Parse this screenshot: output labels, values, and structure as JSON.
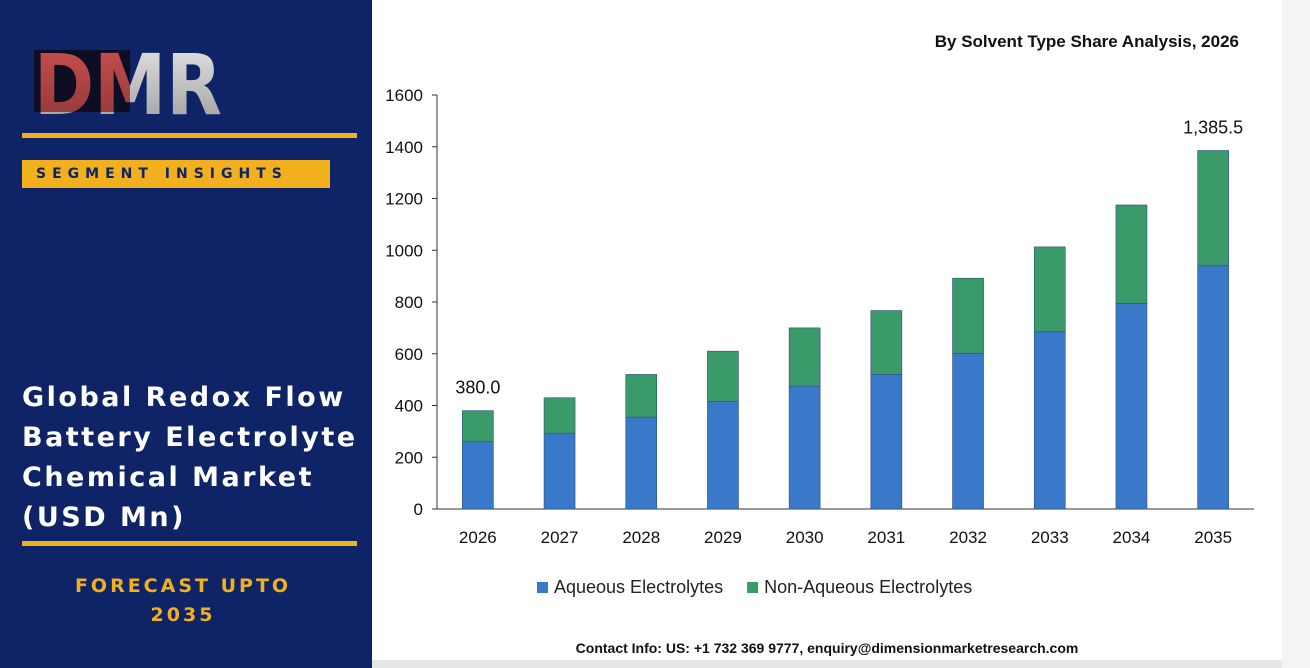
{
  "brand": {
    "logo_text": "DMR"
  },
  "sidebar": {
    "segment_label": "SEGMENT INSIGHTS",
    "title_lines": [
      "Global Redox Flow",
      "Battery Electrolyte",
      "Chemical Market",
      "(USD Mn)"
    ],
    "forecast_lines": [
      "FORECAST UPTO",
      "2035"
    ]
  },
  "contact": "Contact Info: US: +1 732 369 9777, enquiry@dimensionmarketresearch.com",
  "colors": {
    "aqueous": "#3a78c9",
    "non_aqueous": "#3a9a6a",
    "sidebar_bg": "#0e2466",
    "accent": "#f2b01e"
  },
  "chart_data": {
    "type": "bar",
    "stacked": true,
    "title": "By Solvent Type Share Analysis, 2026",
    "categories": [
      "2026",
      "2027",
      "2028",
      "2029",
      "2030",
      "2031",
      "2032",
      "2033",
      "2034",
      "2035"
    ],
    "series": [
      {
        "name": "Aqueous Electrolytes",
        "values": [
          260,
          293,
          355,
          415,
          475,
          520,
          602,
          685,
          795,
          940
        ]
      },
      {
        "name": "Non-Aqueous Electrolytes",
        "values": [
          120,
          137,
          165,
          195,
          225,
          247,
          290,
          328,
          380,
          445.5
        ]
      }
    ],
    "totals": [
      380.0,
      430,
      520,
      610,
      700,
      767,
      892,
      1013,
      1175,
      1385.5
    ],
    "data_labels": [
      {
        "category": "2026",
        "text": "380.0"
      },
      {
        "category": "2035",
        "text": "1,385.5"
      }
    ],
    "yticks": [
      0,
      200,
      400,
      600,
      800,
      1000,
      1200,
      1400,
      1600
    ],
    "ylim": [
      0,
      1600
    ],
    "legend_position": "bottom",
    "grid": false
  }
}
